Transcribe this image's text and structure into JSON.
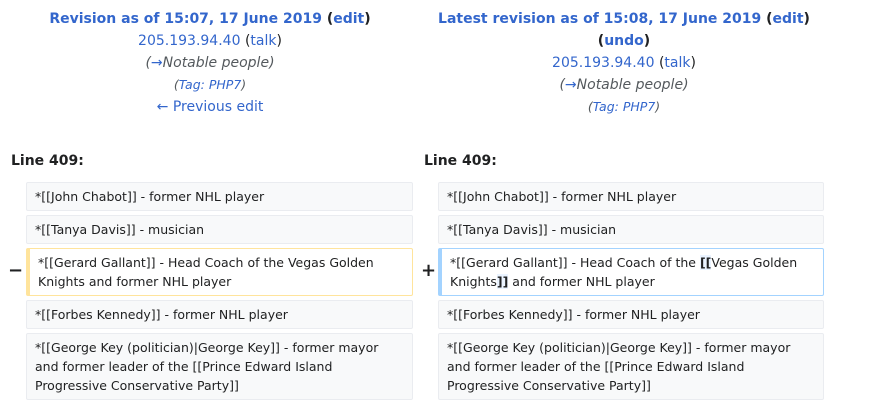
{
  "left": {
    "title_prefix": "Revision as of 15:07, 17 June 2019",
    "edit": "edit",
    "user": "205.193.94.40",
    "talk": "talk",
    "summary_arrow": "→",
    "summary_link": "Notable people",
    "tag_label": "Tag:",
    "tag_value": "PHP7",
    "prev_edit": "← Previous edit",
    "line_label": "Line 409:"
  },
  "right": {
    "title_prefix": "Latest revision as of 15:08, 17 June 2019",
    "edit": "edit",
    "undo": "undo",
    "user": "205.193.94.40",
    "talk": "talk",
    "summary_arrow": "→",
    "summary_link": "Notable people",
    "tag_label": "Tag:",
    "tag_value": "PHP7",
    "line_label": "Line 409:"
  },
  "markers": {
    "minus": "−",
    "plus": "+"
  },
  "rows": {
    "chabot": "*[[John Chabot]] - former NHL player",
    "davis": "*[[Tanya Davis]] - musician",
    "gallant_old": "*[[Gerard Gallant]] - Head Coach of the Vegas Golden Knights and former NHL player",
    "gallant_new_a": "*[[Gerard Gallant]] - Head Coach of the ",
    "gallant_new_b": "[[",
    "gallant_new_c": "Vegas Golden Knights",
    "gallant_new_d": "]]",
    "gallant_new_e": " and former NHL player",
    "kennedy": "*[[Forbes Kennedy]] - former NHL player",
    "key": "*[[George Key (politician)|George Key]] - former mayor and former leader of the [[Prince Edward Island Progressive Conservative Party]]"
  }
}
